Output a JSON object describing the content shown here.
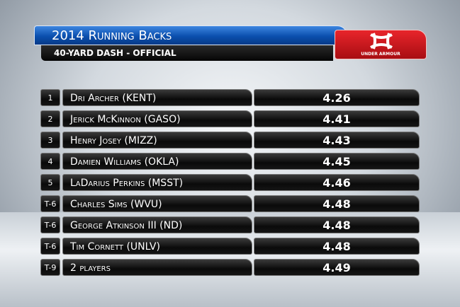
{
  "header": {
    "title": "2014 Running Backs",
    "subtitle": "40-Yard Dash - Official",
    "sponsor": "UNDER ARMOUR"
  },
  "table": {
    "rows": [
      [
        "1",
        "Dri Archer (KENT)",
        "4.26"
      ],
      [
        "2",
        "Jerick McKinnon (GASO)",
        "4.41"
      ],
      [
        "3",
        "Henry Josey (MIZZ)",
        "4.43"
      ],
      [
        "4",
        "Damien Williams (OKLA)",
        "4.45"
      ],
      [
        "5",
        "LaDarius Perkins (MSST)",
        "4.46"
      ],
      [
        "T-6",
        "Charles Sims (WVU)",
        "4.48"
      ],
      [
        "T-6",
        "George Atkinson III (ND)",
        "4.48"
      ],
      [
        "T-6",
        "Tim Cornett (UNLV)",
        "4.48"
      ],
      [
        "T-9",
        "2 players",
        "4.49"
      ]
    ]
  }
}
